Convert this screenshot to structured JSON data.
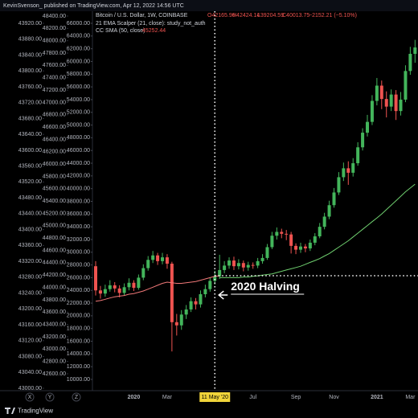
{
  "header": "KevinSvenson_ published on TradingView.com, Apr 12, 2022 14:56 UTC",
  "footer": "TradingView",
  "axis_buttons": [
    "X",
    "Y",
    "Z"
  ],
  "chart_data": {
    "type": "candlestick",
    "legend": {
      "symbol": "Bitcoin / U.S. Dollar, 1W, COINBASE",
      "open": "O42165.96",
      "high": "H42424.14",
      "low": "L39204.59",
      "close": "C40013.75",
      "change": "−2152.21 (−5.10%)",
      "studies": [
        "21 EMA Scalper (21, close): study_not_auth",
        "CC SMA (50, close)"
      ],
      "sma_value": "45252.44"
    },
    "up_color": "#43b55b",
    "down_color": "#ef5350",
    "categories": [
      null,
      null,
      null,
      null,
      null,
      null,
      null,
      null,
      "2020",
      null,
      null,
      null,
      null,
      null,
      null,
      "Mar",
      null,
      null,
      null,
      null,
      null,
      null,
      null,
      null,
      null,
      "11 May '20",
      null,
      null,
      null,
      null,
      null,
      null,
      null,
      "Jul",
      null,
      null,
      null,
      null,
      null,
      null,
      null,
      null,
      "Sep",
      null,
      null,
      null,
      null,
      null,
      null,
      null,
      "Nov",
      null,
      null,
      null,
      null,
      null,
      null,
      null,
      null,
      "2021",
      null,
      null,
      null,
      null,
      null,
      null,
      "Mar",
      null
    ],
    "open": [
      27800,
      24000,
      23500,
      24200,
      24800,
      24300,
      23600,
      24500,
      25200,
      24400,
      26000,
      27500,
      28800,
      29500,
      28600,
      29200,
      28200,
      19000,
      18500,
      20200,
      21000,
      22300,
      21800,
      23400,
      24200,
      25500,
      26200,
      27200,
      27900,
      28700,
      27800,
      28300,
      27600,
      28000,
      27900,
      28600,
      29100,
      30800,
      32600,
      33200,
      32900,
      32800,
      31000,
      30400,
      30900,
      30600,
      31500,
      32500,
      34000,
      35600,
      37400,
      39400,
      41800,
      43200,
      42500,
      44000,
      46500,
      48800,
      50500,
      53800,
      56200,
      54100,
      52900,
      54800,
      52200,
      54000,
      58500,
      61200
    ],
    "high": [
      28600,
      24700,
      24900,
      25600,
      25300,
      24800,
      25100,
      25900,
      25600,
      26500,
      28100,
      29400,
      30200,
      29900,
      29900,
      29700,
      28500,
      20300,
      20900,
      21700,
      22900,
      22800,
      24000,
      24900,
      26000,
      27100,
      29600,
      28600,
      29200,
      29300,
      28900,
      28700,
      28500,
      28400,
      29100,
      29700,
      31300,
      33200,
      33900,
      33700,
      33500,
      33200,
      31400,
      31500,
      31300,
      32000,
      33000,
      34600,
      36200,
      38100,
      40100,
      42600,
      44100,
      44300,
      44800,
      47300,
      49500,
      51600,
      54700,
      57400,
      57000,
      55300,
      55600,
      55500,
      55200,
      59400,
      62300,
      63400
    ],
    "low": [
      23200,
      22700,
      23000,
      23800,
      23700,
      22900,
      23200,
      24000,
      23900,
      24100,
      25600,
      27100,
      28300,
      28000,
      28100,
      27400,
      14400,
      16900,
      17800,
      19500,
      20600,
      21000,
      21300,
      22900,
      23800,
      24900,
      25800,
      26700,
      27400,
      27200,
      27300,
      27000,
      27100,
      27400,
      27500,
      28200,
      28800,
      30500,
      32000,
      32200,
      31900,
      29800,
      29700,
      29900,
      30000,
      30200,
      31100,
      32200,
      33600,
      35200,
      37000,
      39000,
      41200,
      40600,
      41900,
      43600,
      46000,
      48200,
      50000,
      53100,
      52500,
      51200,
      52200,
      50800,
      51500,
      53600,
      57900,
      59800
    ],
    "close": [
      24000,
      23500,
      24200,
      24800,
      24300,
      23600,
      24500,
      25200,
      24400,
      26000,
      27500,
      28800,
      29500,
      28600,
      29200,
      28200,
      19000,
      18500,
      20200,
      21000,
      22300,
      21800,
      23400,
      24200,
      25500,
      26200,
      27200,
      27900,
      28700,
      27800,
      28300,
      27600,
      28000,
      27900,
      28600,
      29100,
      30800,
      32600,
      33200,
      32900,
      32800,
      31000,
      30400,
      30900,
      30600,
      31500,
      32500,
      34000,
      35600,
      37400,
      39400,
      41800,
      43200,
      42500,
      44000,
      46500,
      48800,
      50500,
      53800,
      56200,
      54100,
      52900,
      54800,
      52200,
      54000,
      58500,
      61200,
      62200
    ],
    "series": [
      {
        "name": "21 EMA Scalper",
        "color": "#f07878",
        "values": [
          22300,
          22400,
          22600,
          22800,
          23000,
          23100,
          23200,
          23400,
          23500,
          23700,
          23900,
          24200,
          24500,
          24800,
          25100,
          25300,
          25200,
          25100,
          25100,
          25200,
          25300,
          25400,
          25600,
          25800,
          26000,
          26200,
          26300,
          null,
          null,
          null,
          null,
          null,
          null,
          null,
          null,
          null,
          null,
          null,
          null,
          null,
          null,
          null,
          null,
          null,
          null,
          null,
          null,
          null,
          null,
          null,
          null,
          null,
          null,
          null,
          null,
          null,
          null,
          null,
          null,
          null,
          null,
          null,
          null,
          null,
          null,
          null,
          null,
          null
        ]
      },
      {
        "name": "CC SMA",
        "color": "#6fcf6f",
        "values": [
          null,
          null,
          null,
          null,
          null,
          null,
          null,
          null,
          null,
          null,
          null,
          null,
          null,
          null,
          null,
          null,
          null,
          null,
          null,
          null,
          null,
          null,
          null,
          null,
          null,
          null,
          26000,
          26000,
          26000,
          26000,
          26000,
          26100,
          26100,
          26200,
          26300,
          26400,
          26500,
          26600,
          26800,
          27000,
          27200,
          27400,
          27600,
          27800,
          28100,
          28400,
          28700,
          29000,
          29400,
          29800,
          30300,
          30800,
          31300,
          31800,
          32400,
          33000,
          33600,
          34200,
          34800,
          35400,
          36000,
          36700,
          37400,
          38100,
          38800,
          39500,
          40100,
          40700
        ]
      }
    ],
    "annotation": {
      "text": "2020 Halving",
      "category": 25,
      "price": 26300
    },
    "ylim": [
      10000,
      66000
    ],
    "yticks": [
      {
        "value": 66000,
        "label": "66000.00"
      },
      {
        "value": 64000,
        "label": "64000.00"
      },
      {
        "value": 62000,
        "label": "62000.00"
      },
      {
        "value": 60000,
        "label": "60000.00"
      },
      {
        "value": 58000,
        "label": "58000.00"
      },
      {
        "value": 56000,
        "label": "56000.00"
      },
      {
        "value": 54000,
        "label": "54000.00"
      },
      {
        "value": 52000,
        "label": "52000.00"
      },
      {
        "value": 50000,
        "label": "50000.00"
      },
      {
        "value": 48000,
        "label": "48000.00"
      },
      {
        "value": 46000,
        "label": "46000.00"
      },
      {
        "value": 44000,
        "label": "44000.00"
      },
      {
        "value": 42000,
        "label": "42000.00"
      },
      {
        "value": 40000,
        "label": "40000.00"
      },
      {
        "value": 38000,
        "label": "38000.00"
      },
      {
        "value": 36000,
        "label": "36000.00"
      },
      {
        "value": 34000,
        "label": "34000.00"
      },
      {
        "value": 32000,
        "label": "32000.00"
      },
      {
        "value": 30000,
        "label": "30000.00"
      },
      {
        "value": 28000,
        "label": "28000.00"
      },
      {
        "value": 26000,
        "label": "26000.00"
      },
      {
        "value": 24000,
        "label": "24000.00"
      },
      {
        "value": 22000,
        "label": "22000.00"
      },
      {
        "value": 20000,
        "label": "20000.00"
      },
      {
        "value": 18000,
        "label": "18000.00"
      },
      {
        "value": 16000,
        "label": "16000.00"
      },
      {
        "value": 14000,
        "label": "14000.00"
      },
      {
        "value": 12000,
        "label": "12000.00"
      },
      {
        "value": 10000,
        "label": "10000.00"
      }
    ],
    "extra_axes": [
      {
        "ylim": [
          43000,
          43920
        ],
        "yticks": [
          {
            "value": 43920,
            "label": "43920.00"
          },
          {
            "value": 43880,
            "label": "43880.00"
          },
          {
            "value": 43840,
            "label": "43840.00"
          },
          {
            "value": 43800,
            "label": "43800.00"
          },
          {
            "value": 43760,
            "label": "43760.00"
          },
          {
            "value": 43720,
            "label": "43720.00"
          },
          {
            "value": 43680,
            "label": "43680.00"
          },
          {
            "value": 43640,
            "label": "43640.00"
          },
          {
            "value": 43600,
            "label": "43600.00"
          },
          {
            "value": 43560,
            "label": "43560.00"
          },
          {
            "value": 43520,
            "label": "43520.00"
          },
          {
            "value": 43480,
            "label": "43480.00"
          },
          {
            "value": 43440,
            "label": "43440.00"
          },
          {
            "value": 43400,
            "label": "43400.00"
          },
          {
            "value": 43360,
            "label": "43360.00"
          },
          {
            "value": 43320,
            "label": "43320.00"
          },
          {
            "value": 43280,
            "label": "43280.00"
          },
          {
            "value": 43240,
            "label": "43240.00"
          },
          {
            "value": 43200,
            "label": "43200.00"
          },
          {
            "value": 43160,
            "label": "43160.00"
          },
          {
            "value": 43120,
            "label": "43120.00"
          },
          {
            "value": 43080,
            "label": "43080.00"
          },
          {
            "value": 43040,
            "label": "43040.00"
          },
          {
            "value": 43000,
            "label": "43000.00"
          }
        ]
      },
      {
        "ylim": [
          42600,
          48400
        ],
        "yticks": [
          {
            "value": 48400,
            "label": "48400.00"
          },
          {
            "value": 48200,
            "label": "48200.00"
          },
          {
            "value": 48000,
            "label": "48000.00"
          },
          {
            "value": 47800,
            "label": "47800.00"
          },
          {
            "value": 47600,
            "label": "47600.00"
          },
          {
            "value": 47400,
            "label": "47400.00"
          },
          {
            "value": 47200,
            "label": "47200.00"
          },
          {
            "value": 47000,
            "label": "47000.00"
          },
          {
            "value": 46800,
            "label": "46800.00"
          },
          {
            "value": 46600,
            "label": "46600.00"
          },
          {
            "value": 46400,
            "label": "46400.00"
          },
          {
            "value": 46200,
            "label": "46200.00"
          },
          {
            "value": 46000,
            "label": "46000.00"
          },
          {
            "value": 45800,
            "label": "45800.00"
          },
          {
            "value": 45600,
            "label": "45600.00"
          },
          {
            "value": 45400,
            "label": "45400.00"
          },
          {
            "value": 45200,
            "label": "45200.00"
          },
          {
            "value": 45000,
            "label": "45000.00"
          },
          {
            "value": 44800,
            "label": "44800.00"
          },
          {
            "value": 44600,
            "label": "44600.00"
          },
          {
            "value": 44400,
            "label": "44400.00"
          },
          {
            "value": 44200,
            "label": "44200.00"
          },
          {
            "value": 44000,
            "label": "44000.00"
          },
          {
            "value": 43800,
            "label": "43800.00"
          },
          {
            "value": 43600,
            "label": "43600.00"
          },
          {
            "value": 43400,
            "label": "43400.00"
          },
          {
            "value": 43200,
            "label": "43200.00"
          },
          {
            "value": 43000,
            "label": "43000.00"
          },
          {
            "value": 42800,
            "label": "42800.00"
          },
          {
            "value": 42600,
            "label": "42600.00"
          }
        ]
      }
    ]
  }
}
